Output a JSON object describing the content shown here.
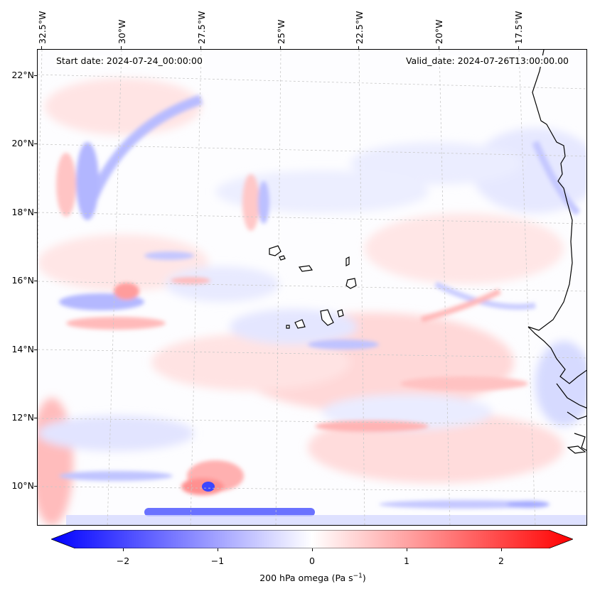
{
  "map": {
    "start_date": "Start date: 2024-07-24_00:00:00",
    "valid_date": "Valid_date: 2024-07-26T13:00:00.00",
    "lon_labels": [
      "32.5°W",
      "30°W",
      "27.5°W",
      "25°W",
      "22.5°W",
      "20°W",
      "17.5°W"
    ],
    "lat_labels": [
      "22°N",
      "20°N",
      "18°N",
      "16°N",
      "14°N",
      "12°N",
      "10°N"
    ],
    "field": "200 hPa omega",
    "colors": {
      "negative": "#0000ff",
      "neutral": "#ffffff",
      "positive": "#ff0000",
      "coast": "#000000",
      "grid": "#cccccc"
    }
  },
  "colorbar": {
    "label_main": "200 hPa omega (Pa s",
    "label_exp": "−1",
    "label_end": ")",
    "range": [
      -2.75,
      2.75
    ],
    "ticks": [
      {
        "value": -2,
        "label": "−2"
      },
      {
        "value": -1,
        "label": "−1"
      },
      {
        "value": 0,
        "label": "0"
      },
      {
        "value": 1,
        "label": "1"
      },
      {
        "value": 2,
        "label": "2"
      }
    ]
  }
}
